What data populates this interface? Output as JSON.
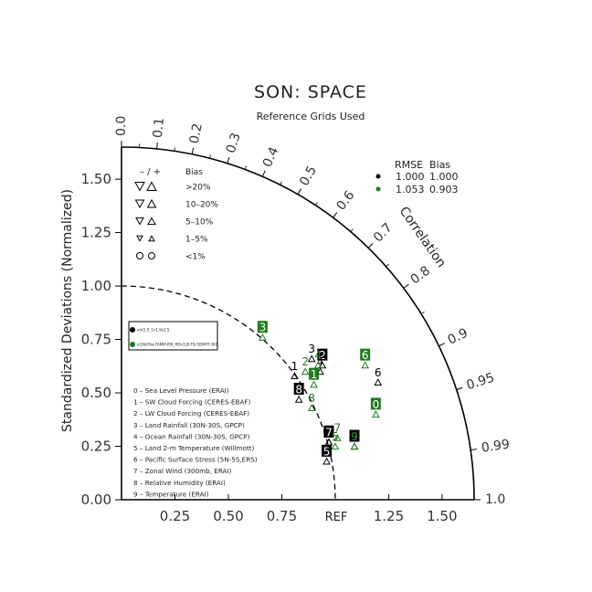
{
  "chart_data": {
    "type": "scatter",
    "subtype": "taylor-diagram",
    "title": "SON: SPACE",
    "subtitle": "Reference Grids Used",
    "ylabel": "Standardized Deviations (Normalized)",
    "correlation_label": "Correlation",
    "ref_label": "REF",
    "axis_range": [
      0,
      1.65
    ],
    "x_ticks": [
      0.25,
      0.5,
      0.75,
      1.25,
      1.5
    ],
    "x_tick_labels": [
      "0.25",
      "0.50",
      "0.75",
      "1.25",
      "1.50"
    ],
    "y_ticks": [
      0,
      0.25,
      0.5,
      0.75,
      1.0,
      1.25,
      1.5
    ],
    "y_tick_labels": [
      "0.00",
      "0.25",
      "0.50",
      "0.75",
      "1.00",
      "1.25",
      "1.50"
    ],
    "correlation_ticks": [
      0.0,
      0.1,
      0.2,
      0.3,
      0.4,
      0.5,
      0.6,
      0.7,
      0.8,
      0.9,
      0.95,
      0.99,
      1.0
    ],
    "correlation_tick_labels": [
      "0.0",
      "0.1",
      "0.2",
      "0.3",
      "0.4",
      "0.5",
      "0.6",
      "0.7",
      "0.8",
      "0.9",
      "0.95",
      "0.99",
      "1.0"
    ],
    "bias_legend": {
      "header": [
        "– / +",
        "Bias"
      ],
      "rows": [
        ">20%",
        "10–20%",
        "5–10%",
        "1–5%",
        "<1%"
      ]
    },
    "rmse_bias_table": {
      "header": "RMSE  Bias",
      "rows": [
        {
          "color": "#000000",
          "rmse": "1.000",
          "bias": "1.000"
        },
        {
          "color": "#1f7a1f",
          "rmse": "1.053",
          "bias": "0.903"
        }
      ]
    },
    "case_names": [
      "am3_0_1v1.9x2.5",
      "e19b05w-FAMIP-f09_f09-CLB-TD-SDHHT-300"
    ],
    "variables": [
      "0 – Sea Level Pressure (ERAI)",
      "1 – SW Cloud Forcing (CERES-EBAF)",
      "2 – LW Cloud Forcing (CERES-EBAF)",
      "3 – Land Rainfall (30N-30S, GPCP)",
      "4 – Ocean Rainfall (30N-30S, GPCP)",
      "5 – Land 2-m Temperature (Willmott)",
      "6 – Pacific Surface Stress (5N-5S,ERS)",
      "7 – Zonal Wind (300mb, ERAI)",
      "8 – Relative Humidity (ERAI)",
      "9 – Temperature (ERAI)"
    ],
    "series": [
      {
        "color": "#000000",
        "points": [
          {
            "id": "0",
            "x": 0.97,
            "y": 0.27,
            "boxed": true
          },
          {
            "id": "1",
            "x": 0.81,
            "y": 0.58,
            "boxed": false
          },
          {
            "id": "2",
            "x": 0.94,
            "y": 0.63,
            "boxed": true
          },
          {
            "id": "3",
            "x": 0.89,
            "y": 0.66,
            "boxed": false
          },
          {
            "id": "4",
            "x": 0.93,
            "y": 0.6,
            "boxed": false
          },
          {
            "id": "5",
            "x": 0.96,
            "y": 0.18,
            "boxed": true
          },
          {
            "id": "6",
            "x": 1.2,
            "y": 0.55,
            "boxed": false
          },
          {
            "id": "7",
            "x": 0.97,
            "y": 0.27,
            "boxed": true
          },
          {
            "id": "8",
            "x": 0.83,
            "y": 0.47,
            "boxed": true
          },
          {
            "id": "9",
            "x": 1.09,
            "y": 0.25,
            "boxed": true
          }
        ]
      },
      {
        "color": "#1f7a1f",
        "points": [
          {
            "id": "0",
            "x": 1.19,
            "y": 0.4,
            "boxed": true
          },
          {
            "id": "1",
            "x": 0.9,
            "y": 0.54,
            "boxed": true
          },
          {
            "id": "2",
            "x": 0.86,
            "y": 0.6,
            "boxed": false
          },
          {
            "id": "3",
            "x": 0.66,
            "y": 0.76,
            "boxed": true
          },
          {
            "id": "4",
            "x": 0.92,
            "y": 0.63,
            "boxed": false
          },
          {
            "id": "5",
            "x": 1.0,
            "y": 0.25,
            "boxed": false
          },
          {
            "id": "6",
            "x": 1.14,
            "y": 0.63,
            "boxed": true
          },
          {
            "id": "7",
            "x": 1.01,
            "y": 0.29,
            "boxed": false
          },
          {
            "id": "8",
            "x": 0.89,
            "y": 0.43,
            "boxed": false
          },
          {
            "id": "9",
            "x": 1.09,
            "y": 0.25,
            "boxed": false
          }
        ]
      }
    ]
  }
}
